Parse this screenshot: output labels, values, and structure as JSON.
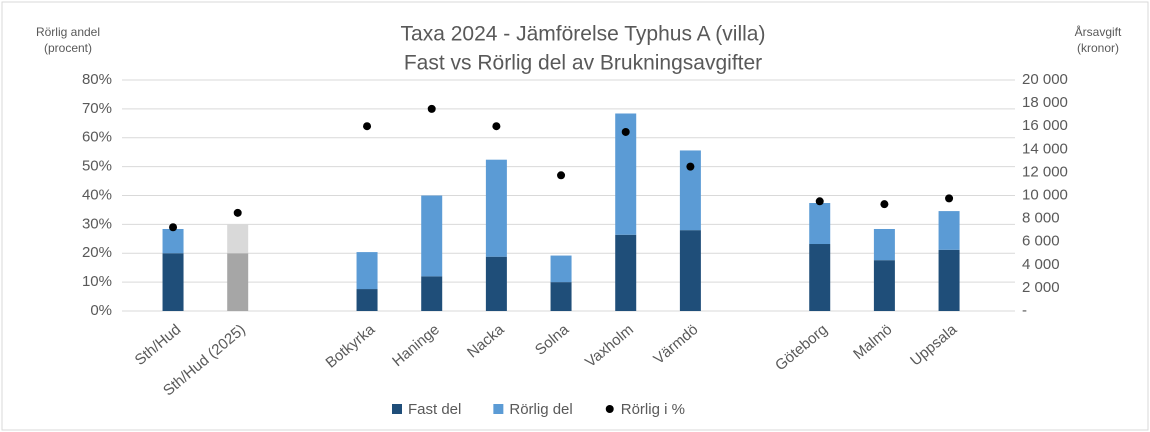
{
  "chart_data": {
    "type": "bar",
    "title": "Taxa 2024 - Jämförelse Typhus A (villa)",
    "subtitle": "Fast vs Rörlig del av Brukningsavgifter",
    "ylabel": [
      "Rörlig andel",
      "(procent)"
    ],
    "y2label": [
      "Årsavgift",
      "(kronor)"
    ],
    "categories": [
      "Sth/Hud",
      "Sth/Hud (2025)",
      null,
      "Botkyrka",
      "Haninge",
      "Nacka",
      "Solna",
      "Vaxholm",
      "Värmdö",
      null,
      "Göteborg",
      "Malmö",
      "Uppsala"
    ],
    "series": [
      {
        "name": "Fast del",
        "kind": "bar",
        "axis": "y2",
        "color": "#1f4e79",
        "point_colors": [
          "#1f4e79",
          "#a6a6a6",
          null,
          "#1f4e79",
          "#1f4e79",
          "#1f4e79",
          "#1f4e79",
          "#1f4e79",
          "#1f4e79",
          null,
          "#1f4e79",
          "#1f4e79",
          "#1f4e79"
        ],
        "values": [
          5000,
          5000,
          null,
          1900,
          3000,
          4700,
          2500,
          6600,
          7000,
          null,
          5800,
          4400,
          5300
        ]
      },
      {
        "name": "Rörlig del",
        "kind": "bar",
        "axis": "y2",
        "color": "#5b9bd5",
        "point_colors": [
          "#5b9bd5",
          "#d9d9d9",
          null,
          "#5b9bd5",
          "#5b9bd5",
          "#5b9bd5",
          "#5b9bd5",
          "#5b9bd5",
          "#5b9bd5",
          null,
          "#5b9bd5",
          "#5b9bd5",
          "#5b9bd5"
        ],
        "values": [
          2100,
          2500,
          null,
          3200,
          7000,
          8400,
          2300,
          10500,
          6900,
          null,
          3550,
          2700,
          3350
        ]
      },
      {
        "name": "Rörlig i %",
        "kind": "dot",
        "axis": "y",
        "color": "#000000",
        "values": [
          29,
          34,
          null,
          64,
          70,
          64,
          47,
          62,
          50,
          null,
          38,
          37,
          39
        ]
      }
    ],
    "ylim": [
      0,
      80
    ],
    "yticks": [
      {
        "value": 0,
        "label": "0%"
      },
      {
        "value": 10,
        "label": "10%"
      },
      {
        "value": 20,
        "label": "20%"
      },
      {
        "value": 30,
        "label": "30%"
      },
      {
        "value": 40,
        "label": "40%"
      },
      {
        "value": 50,
        "label": "50%"
      },
      {
        "value": 60,
        "label": "60%"
      },
      {
        "value": 70,
        "label": "70%"
      },
      {
        "value": 80,
        "label": "80%"
      }
    ],
    "y2lim": [
      0,
      20000
    ],
    "y2ticks": [
      {
        "value": 0,
        "label": "-"
      },
      {
        "value": 2000,
        "label": "2 000"
      },
      {
        "value": 4000,
        "label": "4 000"
      },
      {
        "value": 6000,
        "label": "6 000"
      },
      {
        "value": 8000,
        "label": "8 000"
      },
      {
        "value": 10000,
        "label": "10 000"
      },
      {
        "value": 12000,
        "label": "12 000"
      },
      {
        "value": 14000,
        "label": "14 000"
      },
      {
        "value": 16000,
        "label": "16 000"
      },
      {
        "value": 18000,
        "label": "18 000"
      },
      {
        "value": 20000,
        "label": "20 000"
      }
    ],
    "grid": true,
    "legend": "bottom"
  }
}
